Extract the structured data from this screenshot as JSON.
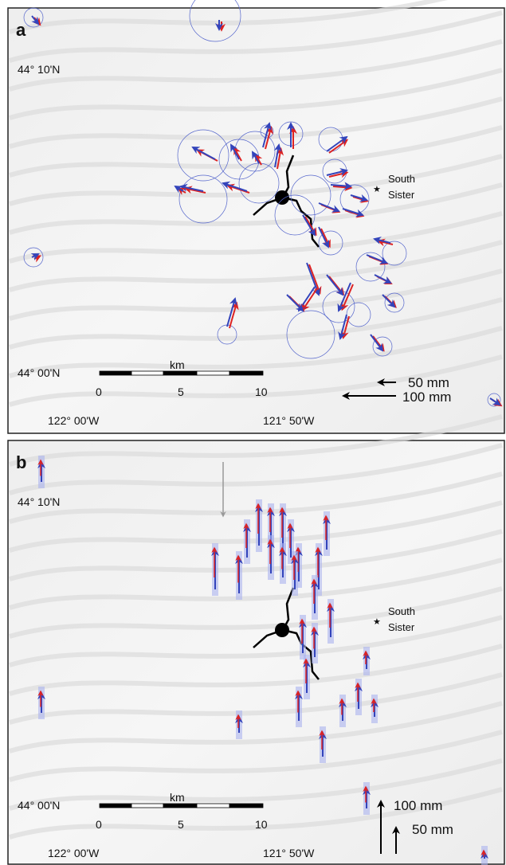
{
  "panels": [
    {
      "label": "a",
      "lat_top": "44° 10'N",
      "lat_bottom": "44° 00'N",
      "lon_left": "122° 00'W",
      "lon_right": "121° 50'W",
      "scale_unit": "km",
      "scale_ticks": [
        "0",
        "5",
        "10"
      ],
      "peak": [
        "South",
        "Sister"
      ],
      "legend": [
        "50 mm",
        "100 mm"
      ]
    },
    {
      "label": "b",
      "lat_top": "44° 10'N",
      "lat_bottom": "44° 00'N",
      "lon_left": "122° 00'W",
      "lon_right": "121° 50'W",
      "scale_unit": "km",
      "scale_ticks": [
        "0",
        "5",
        "10"
      ],
      "peak": [
        "South",
        "Sister"
      ],
      "legend": [
        "100 mm",
        "50 mm"
      ]
    }
  ]
}
